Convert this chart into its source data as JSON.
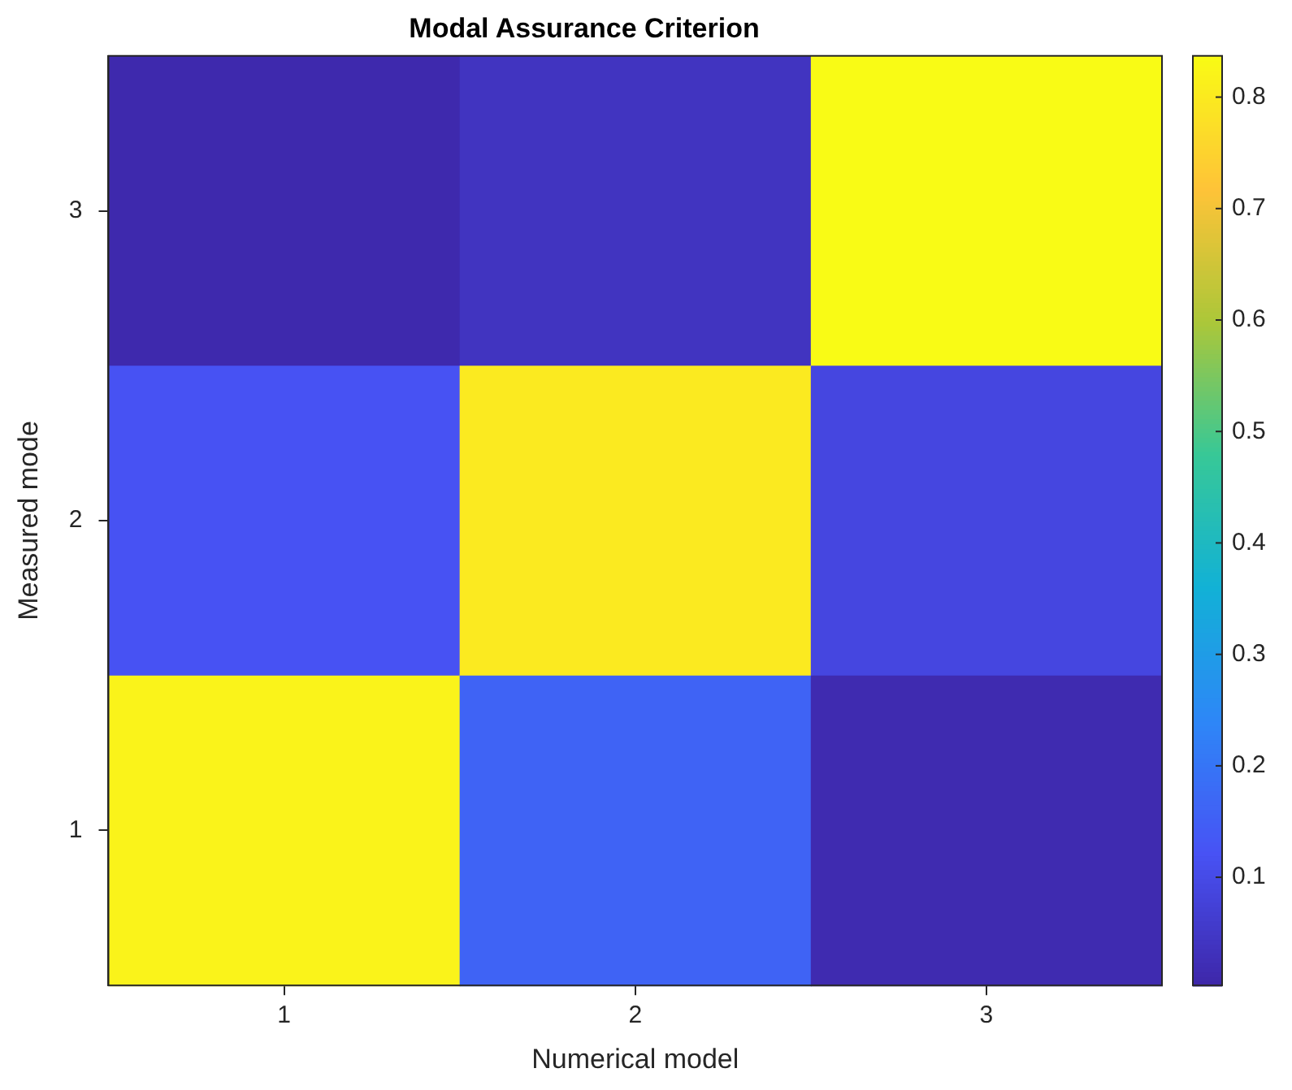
{
  "chart_data": {
    "type": "heatmap",
    "title": "Modal Assurance Criterion",
    "xlabel": "Numerical model",
    "ylabel": "Measured mode",
    "categories": [
      "1",
      "2",
      "3"
    ],
    "y_categories": [
      "3",
      "2",
      "1"
    ],
    "cells": [
      [
        0.01,
        0.04,
        0.837
      ],
      [
        0.12,
        0.8,
        0.09
      ],
      [
        0.82,
        0.16,
        0.015
      ]
    ],
    "clim": [
      0.003,
      0.837
    ],
    "cticks": [
      0.1,
      0.2,
      0.3,
      0.4,
      0.5,
      0.6,
      0.7,
      0.8
    ]
  }
}
